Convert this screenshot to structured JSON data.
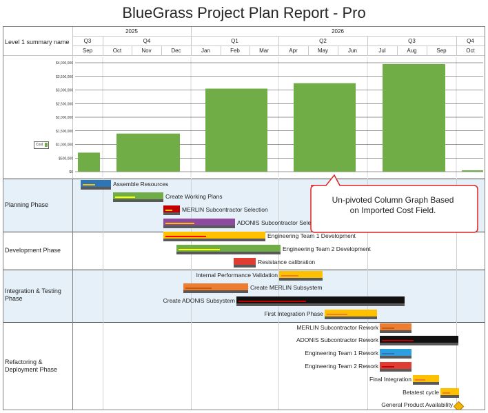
{
  "title": "BlueGrass Project Plan Report - Pro",
  "header": {
    "row_label": "Level 1 summary name",
    "years": [
      "2025",
      "2026"
    ],
    "quarters": [
      "Q3",
      "Q4",
      "Q1",
      "Q2",
      "Q3",
      "Q4"
    ],
    "months": [
      "Sep",
      "Oct",
      "Nov",
      "Dec",
      "Jan",
      "Feb",
      "Mar",
      "Apr",
      "May",
      "Jun",
      "Jul",
      "Aug",
      "Sep",
      "Oct"
    ]
  },
  "chart_data": {
    "type": "bar",
    "categories": [
      "2025-Q3",
      "2025-Q4",
      "2026-Q1",
      "2026-Q2",
      "2026-Q3",
      "2026-Q4"
    ],
    "values": [
      700000,
      1400000,
      3050000,
      3250000,
      3950000,
      50000
    ],
    "ylim": [
      0,
      4000000
    ],
    "yticks": [
      "$0",
      "$500,000",
      "$1,000,000",
      "$1,500,000",
      "$2,000,000",
      "$2,500,000",
      "$3,000,000",
      "$3,500,000",
      "$4,000,000"
    ],
    "series": [
      {
        "name": "Cost",
        "color": "#70ad47"
      }
    ],
    "legend": "left",
    "grid": true
  },
  "legend_label": "Cost",
  "groups": [
    {
      "name": "Planning Phase",
      "shaded": true
    },
    {
      "name": "Development Phase",
      "shaded": false
    },
    {
      "name": "Integration & Testing Phase",
      "shaded": true
    },
    {
      "name": "Refactoring & Deployment Phase",
      "shaded": false
    }
  ],
  "tasks": [
    {
      "name": "Assemble Resources",
      "color": "#2e75b6",
      "stripe": "#ffc000"
    },
    {
      "name": "Create Working Plans",
      "color": "#70ad47",
      "stripe": "#ffff00"
    },
    {
      "name": "MERLIN Subcontractor Selection",
      "color": "#c00000",
      "stripe": "#ffc000"
    },
    {
      "name": "ADONIS Subcontractor Selection",
      "color": "#8e4a9e",
      "stripe": "#ffc000"
    },
    {
      "name": "Engineering Team 1 Development",
      "color": "#ffc000",
      "stripe": "#ff0000"
    },
    {
      "name": "Engineering Team 2 Development",
      "color": "#70ad47",
      "stripe": "#ffff00"
    },
    {
      "name": "Resistance calibration",
      "color": "#e03c31",
      "stripe": "#e03c31"
    },
    {
      "name": "Internal Performance Validation",
      "color": "#ffc000",
      "stripe": "#ed7d31"
    },
    {
      "name": "Create MERLIN Subsystem",
      "color": "#ed7d31",
      "stripe": "#c55a11"
    },
    {
      "name": "Create ADONIS Subsystem",
      "color": "#111111",
      "stripe": "#c00000"
    },
    {
      "name": "First Integration Phase",
      "color": "#ffc000",
      "stripe": "#ed7d31"
    },
    {
      "name": "MERLIN Subcontractor Rework",
      "color": "#ed7d31",
      "stripe": "#c55a11"
    },
    {
      "name": "ADONIS Subcontractor Rework",
      "color": "#111111",
      "stripe": "#c00000"
    },
    {
      "name": "Engineering Team 1 Rework",
      "color": "#2e9fe0",
      "stripe": "#2e75b6"
    },
    {
      "name": "Engineering Team 2 Rework",
      "color": "#e03c31",
      "stripe": "#c00000"
    },
    {
      "name": "Final Integration",
      "color": "#ffc000",
      "stripe": "#ed7d31"
    },
    {
      "name": "Betatest cycle",
      "color": "#ffc000",
      "stripe": "#ed7d31"
    },
    {
      "name": "General Product Availability",
      "color": "#f4b400"
    }
  ],
  "callout": {
    "line1": "Un-pivoted Column Graph Based",
    "line2": "on Imported Cost Field."
  }
}
